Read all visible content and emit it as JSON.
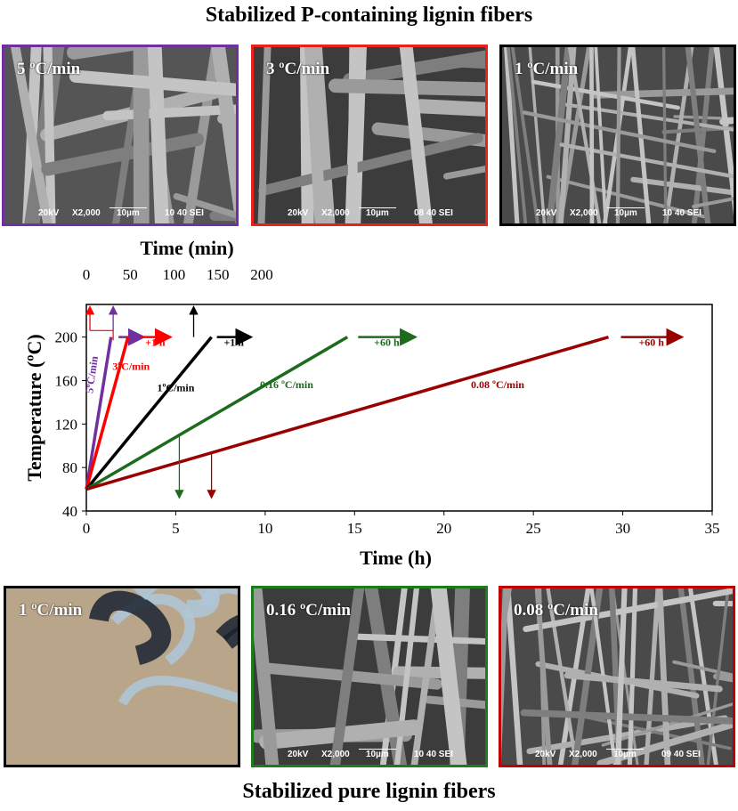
{
  "headings": {
    "top": "Stabilized P-containing lignin fibers",
    "bottom": "Stabilized pure lignin fibers"
  },
  "panels_top": [
    {
      "label": "5 ºC/min",
      "border": "#7030a0",
      "kv": "20kV",
      "mag": "X2,000",
      "scale": "10µm",
      "code": "10 40 SEI",
      "style": "sem-web"
    },
    {
      "label": "3 ºC/min",
      "border": "#e8211d",
      "kv": "20kV",
      "mag": "X2,000",
      "scale": "10µm",
      "code": "08 40 SEI",
      "style": "sem-fibers"
    },
    {
      "label": "1 ºC/min",
      "border": "#000000",
      "kv": "20kV",
      "mag": "X2,000",
      "scale": "10µm",
      "code": "10 40 SEI",
      "style": "sem-dense"
    }
  ],
  "panels_bottom": [
    {
      "label": "1 ºC/min",
      "border": "#000000",
      "style": "optical"
    },
    {
      "label": "0.16 ºC/min",
      "border": "#1d7a1d",
      "kv": "20kV",
      "mag": "X2,000",
      "scale": "10µm",
      "code": "10 40 SEI",
      "style": "sem-smooth"
    },
    {
      "label": "0.08 ºC/min",
      "border": "#c00000",
      "kv": "20kV",
      "mag": "X2,000",
      "scale": "10µm",
      "code": "09 40 SEI",
      "style": "sem-dense"
    }
  ],
  "chart_data": {
    "type": "line",
    "xlabel": "Time (h)",
    "x2label": "Time (min)",
    "ylabel": "Temperature (ºC)",
    "xlim": [
      0,
      35
    ],
    "ylim": [
      40,
      230
    ],
    "x2lim": [
      0,
      210
    ],
    "x_ticks": [
      0,
      5,
      10,
      15,
      20,
      25,
      30,
      35
    ],
    "y_ticks": [
      40,
      80,
      120,
      160,
      200
    ],
    "x2_ticks": [
      0,
      50,
      100,
      150,
      200
    ],
    "series": [
      {
        "name": "5ºC/min",
        "color": "#7030a0",
        "x": [
          0,
          1.38
        ],
        "y": [
          60,
          200
        ],
        "hold": "",
        "hold_x": [
          1.8,
          3.2
        ]
      },
      {
        "name": "3ºC/min",
        "color": "#ff0000",
        "x": [
          0,
          2.33
        ],
        "y": [
          60,
          200
        ],
        "hold": "+1 h",
        "hold_x": [
          3.0,
          4.7
        ]
      },
      {
        "name": "1ºC/min",
        "color": "#000000",
        "x": [
          0,
          7.0
        ],
        "y": [
          60,
          200
        ],
        "hold": "+1 h",
        "hold_x": [
          7.3,
          9.2
        ]
      },
      {
        "name": "0.16 ºC/min",
        "color": "#1d6b1d",
        "x": [
          0,
          14.6
        ],
        "y": [
          60,
          200
        ],
        "hold": "+60 h",
        "hold_x": [
          15.2,
          18.4
        ]
      },
      {
        "name": "0.08 ºC/min",
        "color": "#990000",
        "x": [
          0,
          29.2
        ],
        "y": [
          60,
          200
        ],
        "hold": "+60 h",
        "hold_x": [
          29.9,
          33.3
        ]
      }
    ]
  }
}
